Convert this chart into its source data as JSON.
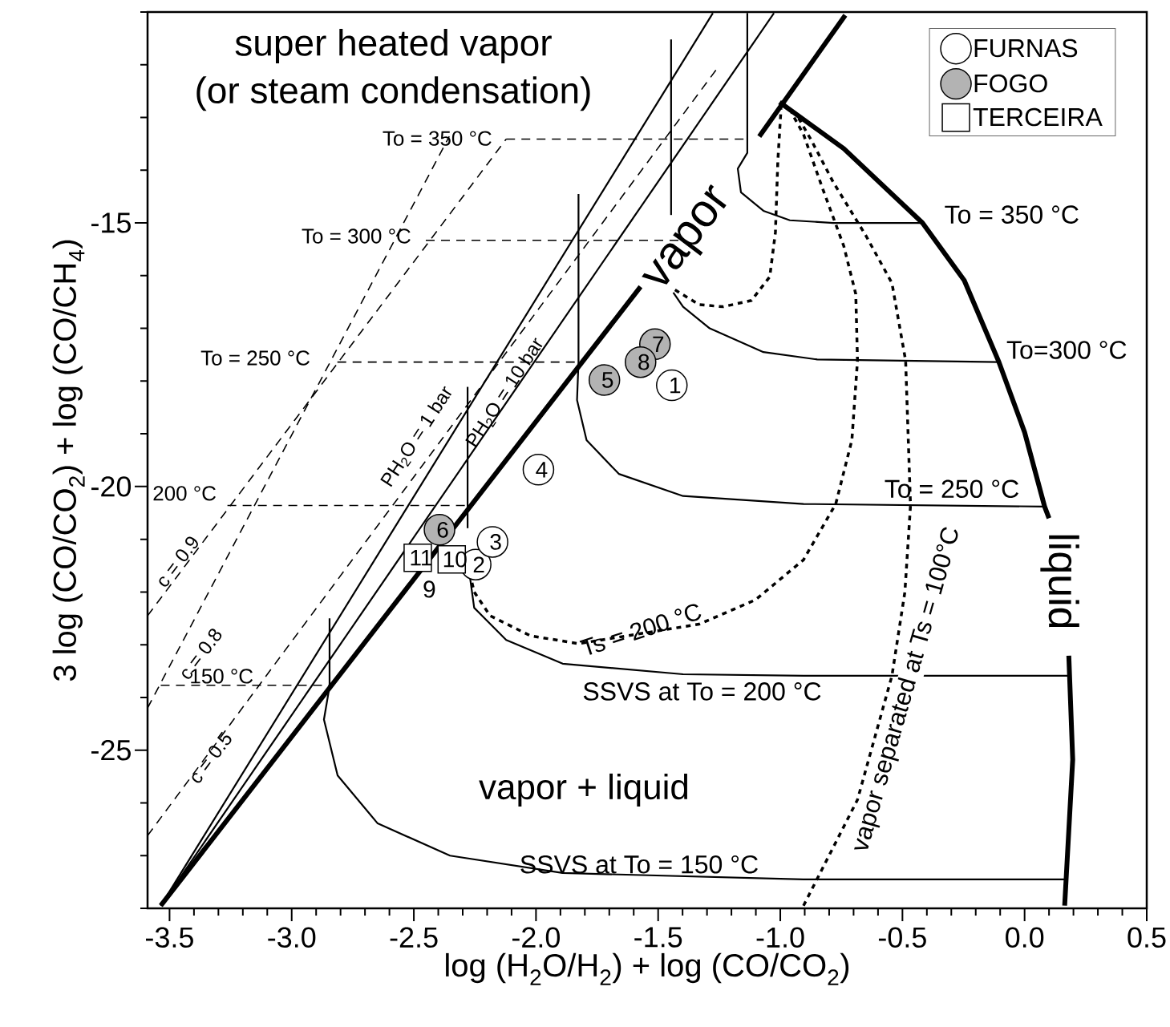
{
  "chart_data": {
    "type": "scatter",
    "xlabel": "log (H$_{2}$O/H$_{2}$) + log (CO/CO$_{2}$)",
    "ylabel": "3 log (CO/CO$_{2}$) + log (CO/CH$_{4}$)",
    "xlim": [
      -3.59,
      0.5
    ],
    "ylim": [
      -28,
      -11
    ],
    "xticks": [
      {
        "value": -3.5,
        "label": "-3.5"
      },
      {
        "value": -3.4,
        "label": null
      },
      {
        "value": -3.3,
        "label": null
      },
      {
        "value": -3.2,
        "label": null
      },
      {
        "value": -3.1,
        "label": null
      },
      {
        "value": -3.0,
        "label": "-3.0"
      },
      {
        "value": -2.9,
        "label": null
      },
      {
        "value": -2.8,
        "label": null
      },
      {
        "value": -2.7,
        "label": null
      },
      {
        "value": -2.6,
        "label": null
      },
      {
        "value": -2.5,
        "label": "-2.5"
      },
      {
        "value": -2.4,
        "label": null
      },
      {
        "value": -2.3,
        "label": null
      },
      {
        "value": -2.2,
        "label": null
      },
      {
        "value": -2.1,
        "label": null
      },
      {
        "value": -2.0,
        "label": "-2.0"
      },
      {
        "value": -1.9,
        "label": null
      },
      {
        "value": -1.8,
        "label": null
      },
      {
        "value": -1.7,
        "label": null
      },
      {
        "value": -1.6,
        "label": null
      },
      {
        "value": -1.5,
        "label": "-1.5"
      },
      {
        "value": -1.4,
        "label": null
      },
      {
        "value": -1.3,
        "label": null
      },
      {
        "value": -1.2,
        "label": null
      },
      {
        "value": -1.1,
        "label": null
      },
      {
        "value": -1.0,
        "label": "-1.0"
      },
      {
        "value": -0.9,
        "label": null
      },
      {
        "value": -0.8,
        "label": null
      },
      {
        "value": -0.7,
        "label": null
      },
      {
        "value": -0.6,
        "label": null
      },
      {
        "value": -0.5,
        "label": "-0.5"
      },
      {
        "value": -0.4,
        "label": null
      },
      {
        "value": -0.3,
        "label": null
      },
      {
        "value": -0.2,
        "label": null
      },
      {
        "value": -0.1,
        "label": null
      },
      {
        "value": 0.0,
        "label": "0.0"
      },
      {
        "value": 0.1,
        "label": null
      },
      {
        "value": 0.2,
        "label": null
      },
      {
        "value": 0.3,
        "label": null
      },
      {
        "value": 0.4,
        "label": null
      },
      {
        "value": 0.5,
        "label": "0.5"
      }
    ],
    "yticks": [
      {
        "value": -28,
        "label": null
      },
      {
        "value": -27,
        "label": null
      },
      {
        "value": -26,
        "label": null
      },
      -25,
      {
        "value": -24,
        "label": null
      },
      {
        "value": -23,
        "label": null
      },
      {
        "value": -22,
        "label": null
      },
      {
        "value": -21,
        "label": null
      },
      -20,
      {
        "value": -19,
        "label": null
      },
      {
        "value": -18,
        "label": null
      },
      {
        "value": -17,
        "label": null
      },
      {
        "value": -16,
        "label": null
      },
      -15,
      {
        "value": -14,
        "label": null
      },
      {
        "value": -13,
        "label": null
      },
      {
        "value": -12,
        "label": null
      },
      {
        "value": -11,
        "label": null
      }
    ],
    "legend": "top right",
    "series": [
      {
        "name": "FURNAS",
        "marker": "circle",
        "color": "#ffffff",
        "x": [
          -1.444,
          -2.247,
          -2.178,
          -1.99
        ],
        "values": [
          -18.08,
          -21.48,
          -21.05,
          -19.68
        ]
      },
      {
        "name": "FOGO",
        "marker": "circle",
        "color": "#b3b3b3",
        "x": [
          -1.72,
          -2.395,
          -1.513,
          -1.572
        ],
        "values": [
          -17.98,
          -20.82,
          -17.3,
          -17.64
        ]
      },
      {
        "name": "TERCEIRA",
        "marker": "square",
        "color": "#ffffff",
        "x": [
          -2.345,
          -2.484
        ],
        "values": [
          -21.38,
          -21.35
        ]
      },
      {
        "type": "line",
        "color": "#000000",
        "line_style": "solid",
        "x": [
          -3.536,
          -1.572,
          -1.3,
          -1.086,
          -0.734
        ],
        "values": [
          -27.95,
          -16.21,
          null,
          -13.36,
          -11.06
        ]
      },
      {
        "type": "line",
        "color": "#000000",
        "line_style": "solid",
        "x": [
          -1.003,
          -0.74,
          -0.418,
          -0.247,
          -0.105,
          0.0,
          0.082,
          0.1,
          0.14,
          0.181,
          0.197,
          0.164
        ],
        "values": [
          -12.71,
          -13.59,
          -15.0,
          -16.09,
          -17.64,
          -18.97,
          -20.38,
          -20.6,
          null,
          -23.21,
          -25.18,
          -27.95
        ]
      },
      {
        "type": "line",
        "color": "#000000",
        "line_style": "solid",
        "x": [
          -3.536,
          -1.276
        ],
        "values": [
          -27.95,
          -11.02
        ]
      },
      {
        "type": "line",
        "color": "#000000",
        "line_style": "solid",
        "x": [
          -3.536,
          -1.026
        ],
        "values": [
          -27.95,
          -11.02
        ]
      },
      {
        "type": "line",
        "color": "#000000",
        "line_style": "solid",
        "x": [
          -1.447,
          -1.447
        ],
        "values": [
          -11.52,
          -14.85
        ]
      },
      {
        "type": "line",
        "color": "#000000",
        "line_style": "solid",
        "x": [
          -1.135,
          -1.135,
          -1.174,
          -1.161,
          -1.069,
          -0.961,
          -0.783,
          -0.421
        ],
        "values": [
          -11.02,
          -13.67,
          -13.97,
          -14.42,
          -14.77,
          -14.95,
          -15.0,
          -15.0
        ]
      },
      {
        "type": "line",
        "color": "#000000",
        "line_style": "solid",
        "x": [
          -1.826,
          -1.826,
          -1.832,
          -1.793,
          -1.661,
          -1.398,
          -0.905,
          0.082
        ],
        "values": [
          -14.45,
          -17.64,
          -18.36,
          -19.12,
          -19.76,
          -20.18,
          -20.33,
          -20.38
        ]
      },
      {
        "type": "line",
        "color": "#000000",
        "line_style": "solid",
        "x": [
          -2.28,
          -2.28
        ],
        "values": [
          -18.11,
          -20.79
        ]
      },
      {
        "type": "line",
        "color": "#000000",
        "line_style": "solid",
        "x": [
          -2.845,
          -2.845,
          -2.868,
          -2.812,
          -2.648,
          -2.352,
          -1.891,
          -0.905,
          0.164
        ],
        "values": [
          -22.5,
          -23.79,
          -24.42,
          -25.48,
          -26.39,
          -27.0,
          -27.33,
          -27.45,
          -27.45
        ]
      },
      {
        "type": "line",
        "color": "#000000",
        "line_style": "dashed",
        "x": [
          -2.122,
          -1.135
        ],
        "values": [
          -13.41,
          -13.41
        ]
      },
      {
        "type": "line",
        "color": "#000000",
        "line_style": "dashed",
        "x": [
          -2.451,
          -1.398
        ],
        "values": [
          -15.33,
          -15.33
        ]
      },
      {
        "type": "line",
        "color": "#000000",
        "line_style": "dashed",
        "x": [
          -2.813,
          -1.826
        ],
        "values": [
          -17.64,
          -17.64
        ]
      },
      {
        "type": "line",
        "color": "#000000",
        "line_style": "dashed",
        "x": [
          -3.263,
          -2.28
        ],
        "values": [
          -20.36,
          -20.36
        ]
      },
      {
        "type": "line",
        "color": "#000000",
        "line_style": "dashed",
        "x": [
          -3.536,
          -2.845
        ],
        "values": [
          -23.77,
          -23.77
        ]
      },
      {
        "type": "line",
        "color": "#000000",
        "line_style": "dashed",
        "x": [
          -3.59,
          -2.122
        ],
        "values": [
          -22.45,
          -13.41
        ]
      },
      {
        "type": "line",
        "color": "#000000",
        "line_style": "dashed",
        "x": [
          -3.59,
          -2.355
        ],
        "values": [
          -24.2,
          -13.36
        ]
      },
      {
        "type": "line",
        "color": "#000000",
        "line_style": "dashed",
        "x": [
          -3.59,
          -1.26
        ],
        "values": [
          -26.62,
          -12.08
        ]
      },
      {
        "type": "line",
        "color": "#000000",
        "line_style": "solid",
        "x": [
          -1.438,
          -1.398,
          -1.289,
          -1.069,
          -0.849,
          -0.105
        ],
        "values": [
          -16.32,
          -16.59,
          -17.0,
          -17.45,
          -17.59,
          -17.64
        ]
      },
      {
        "type": "line",
        "color": "#000000",
        "line_style": "solid",
        "x": [
          -2.28,
          -2.253,
          -2.122,
          -1.891,
          -1.398,
          -0.905,
          0.181
        ],
        "values": [
          -21.39,
          -22.3,
          -22.91,
          -23.36,
          -23.56,
          -23.59,
          -23.59
        ]
      },
      {
        "type": "line",
        "color": "#000000",
        "line_style": "dotted",
        "x": [
          -1.431,
          -1.332,
          -1.234,
          -1.118,
          -1.043,
          -1.02,
          -1.01,
          -0.997
        ],
        "values": [
          -16.27,
          -16.55,
          -16.59,
          -16.47,
          -16.02,
          -15.18,
          -13.82,
          -12.83
        ]
      },
      {
        "type": "line",
        "color": "#000000",
        "line_style": "dotted",
        "x": [
          -2.28,
          -2.253,
          -2.188,
          -2.023,
          -1.826,
          -1.332,
          -1.102,
          -0.905,
          -0.773,
          -0.707,
          -0.684,
          -0.691,
          -0.74,
          -0.829,
          -0.905,
          -0.954
        ],
        "values": [
          -21.47,
          -22.0,
          -22.45,
          -22.83,
          -22.98,
          -22.61,
          -22.15,
          -21.39,
          -20.33,
          -19.12,
          -17.61,
          -16.35,
          -15.44,
          -14.32,
          -13.32,
          -12.91
        ]
      },
      {
        "type": "line",
        "color": "#000000",
        "line_style": "dotted",
        "x": [
          -0.905,
          -0.684,
          -0.543,
          -0.49,
          -0.467,
          -0.487,
          -0.543,
          -0.651,
          -0.783,
          -0.872,
          -0.938
        ],
        "values": [
          -27.95,
          -25.94,
          -23.59,
          -22.0,
          -20.36,
          -17.61,
          -16.14,
          -15.23,
          -14.23,
          -13.44,
          -12.91
        ]
      }
    ],
    "annotations": [
      "super heated vapor",
      "(or steam condensation)",
      "vapor",
      "liquid",
      "vapor + liquid",
      "To = 350 °C",
      "To=300 °C",
      "To = 250 °C",
      "SSVS at To = 200 °C",
      "SSVS at To = 150 °C",
      "Ts = 200 °C",
      "vapor separated at Ts = 100°C",
      "To = 350 °C",
      "To = 300 °C",
      "To = 250 °C",
      "200 °C",
      "150 °C",
      "c = 0.9",
      "c = 0.8",
      "c = 0.5",
      "PH$_{2}$O = 1 bar",
      "PH$_{2}$O = 10 bar",
      {
        "text": "1",
        "x": -1.444,
        "y": -18.08
      },
      {
        "text": "2",
        "x": -2.247,
        "y": -21.48
      },
      {
        "text": "3",
        "x": -2.178,
        "y": -21.05
      },
      {
        "text": "4",
        "x": -1.99,
        "y": -19.68
      },
      {
        "text": "5",
        "x": -1.72,
        "y": -17.98
      },
      {
        "text": "6",
        "x": -2.395,
        "y": -20.82
      },
      {
        "text": "7",
        "x": -1.513,
        "y": -17.3
      },
      {
        "text": "8",
        "x": -1.572,
        "y": -17.64
      },
      {
        "text": "10",
        "x": -2.345,
        "y": -21.38
      },
      {
        "text": "11",
        "x": -2.484,
        "y": -21.35
      },
      "9"
    ]
  }
}
